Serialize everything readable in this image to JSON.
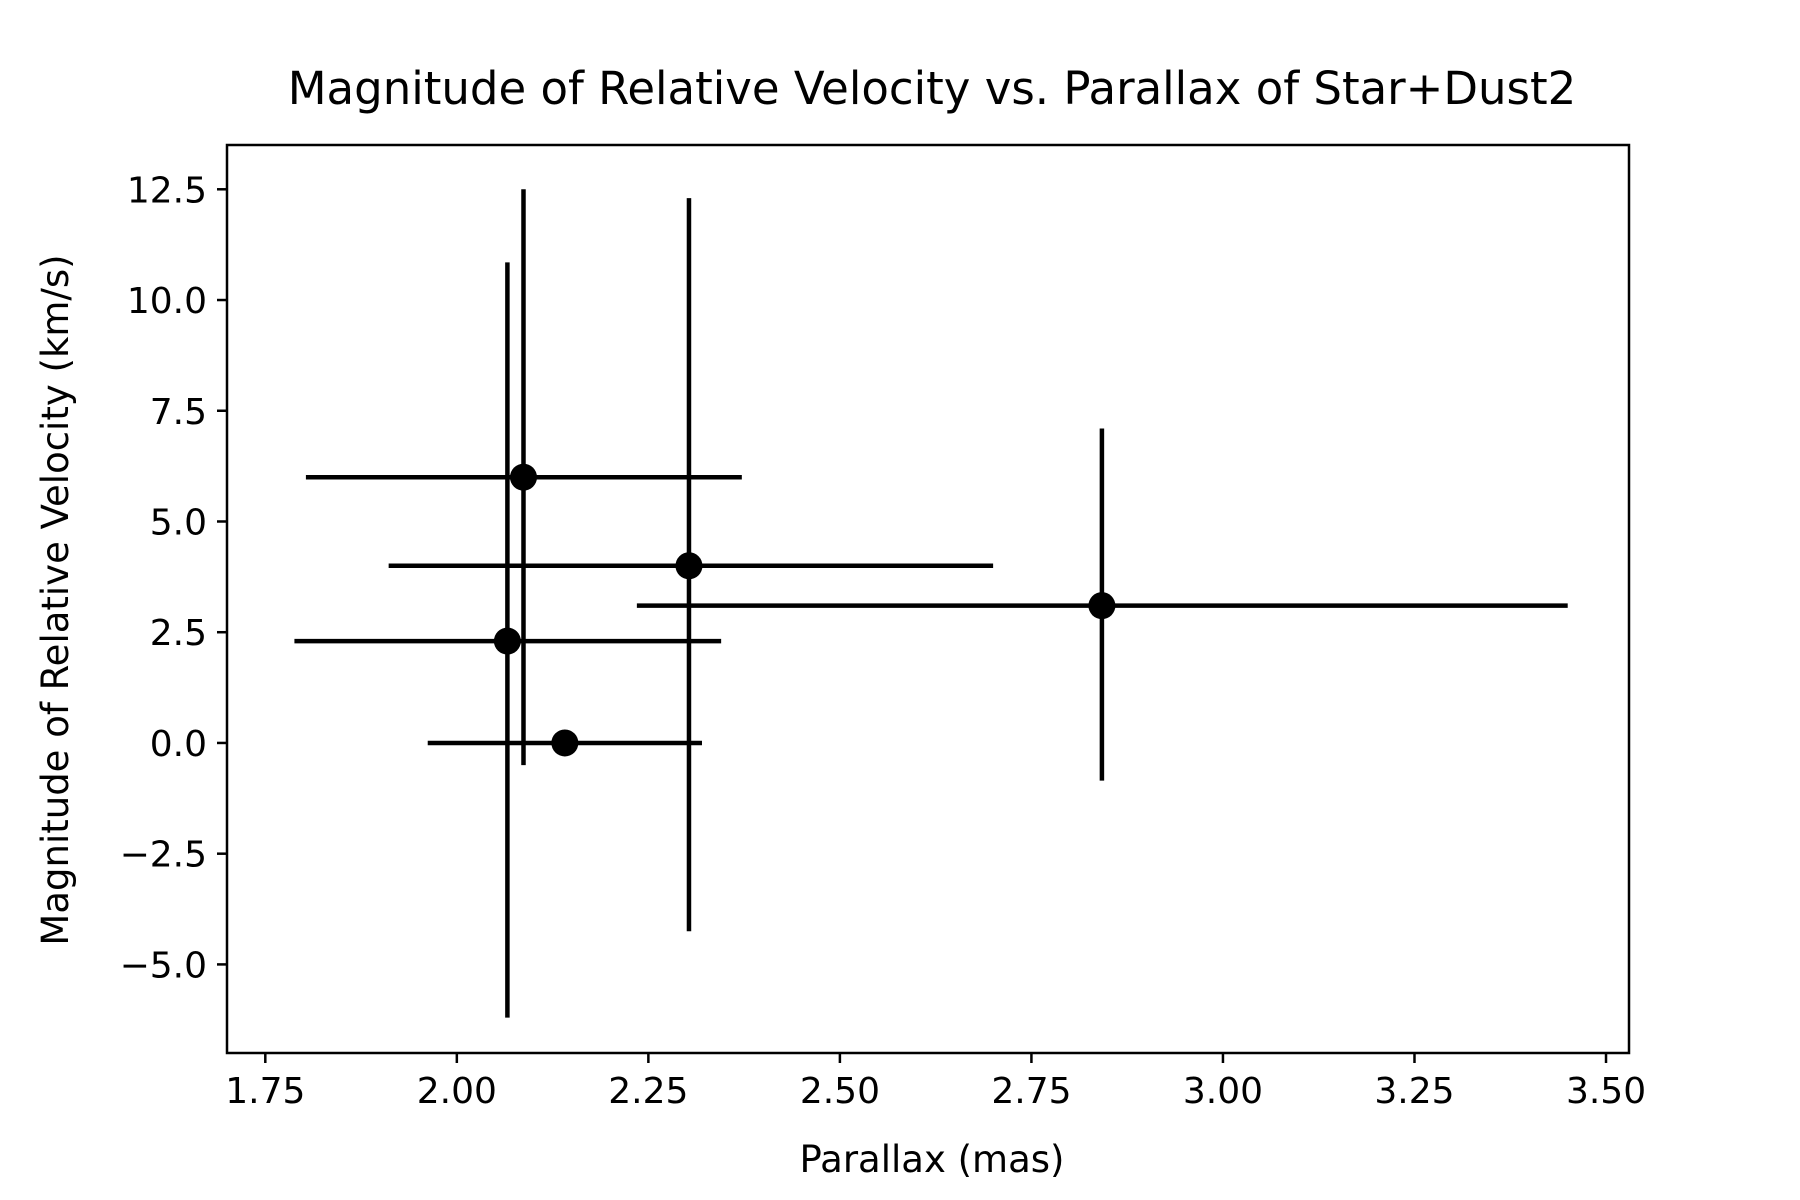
{
  "chart_data": {
    "type": "scatter",
    "title": "Magnitude of Relative Velocity vs. Parallax of Star+Dust2",
    "xlabel": "Parallax (mas)",
    "ylabel": "Magnitude of Relative Velocity (km/s)",
    "xlim": [
      1.7,
      3.53
    ],
    "ylim": [
      -7.0,
      13.5
    ],
    "xticks": [
      1.75,
      2.0,
      2.25,
      2.5,
      2.75,
      3.0,
      3.25,
      3.5
    ],
    "xtick_labels": [
      "1.75",
      "2.00",
      "2.25",
      "2.50",
      "2.75",
      "3.00",
      "3.25",
      "3.50"
    ],
    "yticks": [
      -5.0,
      -2.5,
      0.0,
      2.5,
      5.0,
      7.5,
      10.0,
      12.5
    ],
    "ytick_labels": [
      "−5.0",
      "−2.5",
      "0.0",
      "2.5",
      "5.0",
      "7.5",
      "10.0",
      "12.5"
    ],
    "grid": false,
    "color": "#000000",
    "points": [
      {
        "x": 2.087,
        "y": 6.0,
        "xerr_low": 1.803,
        "xerr_high": 2.372,
        "yerr_low": -0.5,
        "yerr_high": 12.5
      },
      {
        "x": 2.303,
        "y": 4.0,
        "xerr_low": 1.911,
        "xerr_high": 2.7,
        "yerr_low": -4.25,
        "yerr_high": 12.3
      },
      {
        "x": 2.842,
        "y": 3.1,
        "xerr_low": 2.235,
        "xerr_high": 3.45,
        "yerr_low": -0.85,
        "yerr_high": 7.1
      },
      {
        "x": 2.066,
        "y": 2.3,
        "xerr_low": 1.788,
        "xerr_high": 2.345,
        "yerr_low": -6.2,
        "yerr_high": 10.85
      },
      {
        "x": 2.141,
        "y": 0.0,
        "xerr_low": 1.962,
        "xerr_high": 2.32,
        "yerr_low": null,
        "yerr_high": null
      }
    ]
  }
}
